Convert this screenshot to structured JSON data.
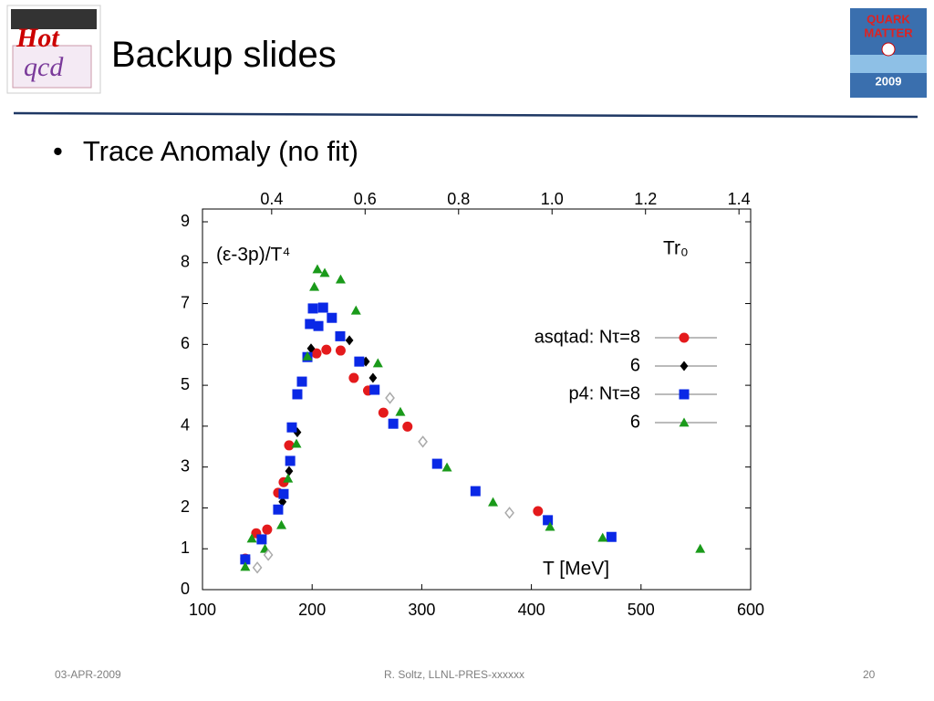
{
  "header": {
    "title": "Backup slides"
  },
  "logos": {
    "left": [
      "Hot",
      "qcd"
    ],
    "right": [
      "QUARK",
      "MATTER",
      "2009"
    ]
  },
  "bullets": [
    "Trace Anomaly (no fit)"
  ],
  "chart_data": {
    "type": "scatter",
    "annotations": [
      "(ε-3p)/T⁴",
      "Tr₀"
    ],
    "xlabel": "T [MeV]",
    "xlim": [
      100,
      600
    ],
    "xticks": [
      100,
      200,
      300,
      400,
      500,
      600
    ],
    "x2lim": [
      0.252,
      1.425
    ],
    "x2ticks": [
      {
        "value": 0.4,
        "label": "0.4"
      },
      {
        "value": 0.6,
        "label": "0.6"
      },
      {
        "value": 0.8,
        "label": "0.8"
      },
      {
        "value": 1.0,
        "label": "1.0"
      },
      {
        "value": 1.2,
        "label": "1.2"
      },
      {
        "value": 1.4,
        "label": "1.4"
      }
    ],
    "ylim": [
      0,
      9
    ],
    "yticks": [
      0,
      1,
      2,
      3,
      4,
      5,
      6,
      7,
      8,
      9
    ],
    "series": [
      {
        "name": "asqtad: Nτ=8",
        "color": "#e41a1c",
        "marker": "circle",
        "x": [
          139,
          149,
          159,
          169,
          174,
          179,
          204,
          213,
          226,
          238,
          251,
          265,
          287,
          406
        ],
        "values": [
          0.76,
          1.38,
          1.47,
          2.37,
          2.63,
          3.53,
          5.78,
          5.87,
          5.85,
          5.18,
          4.87,
          4.33,
          3.99,
          1.92
        ]
      },
      {
        "name": "6",
        "color": "#000000",
        "marker": "diamond",
        "x": [
          173,
          179,
          186.5,
          199,
          234,
          249,
          255.5
        ],
        "values": [
          2.15,
          2.9,
          3.85,
          5.9,
          6.1,
          5.58,
          5.18
        ]
      },
      {
        "name": "p4: Nτ=8",
        "color": "#0a28e6",
        "marker": "square",
        "x": [
          139,
          154,
          169,
          174,
          180,
          181.5,
          186.5,
          190.7,
          195.7,
          198,
          200.7,
          205.7,
          210,
          218,
          225.6,
          243,
          257,
          274,
          314,
          349,
          415,
          473
        ],
        "values": [
          0.74,
          1.23,
          1.96,
          2.34,
          3.15,
          3.97,
          4.78,
          5.09,
          5.69,
          6.5,
          6.88,
          6.45,
          6.9,
          6.65,
          6.2,
          5.58,
          4.89,
          4.06,
          3.08,
          2.41,
          1.7,
          1.29
        ]
      },
      {
        "name": "6",
        "color": "#1a9a1a",
        "marker": "triangle",
        "x": [
          139,
          145,
          157,
          172,
          178,
          185.7,
          195.7,
          202,
          204.8,
          211.5,
          226,
          240,
          260,
          280.5,
          323,
          365,
          417,
          465,
          554
        ],
        "values": [
          0.56,
          1.25,
          1.0,
          1.58,
          2.72,
          3.57,
          5.71,
          7.41,
          7.84,
          7.75,
          7.59,
          6.83,
          5.54,
          4.35,
          2.99,
          2.14,
          1.54,
          1.27,
          1.0
        ]
      },
      {
        "color": "#aaaaaa",
        "marker": "open-diamond",
        "x": [
          150,
          160,
          271,
          301,
          380
        ],
        "values": [
          0.54,
          0.85,
          4.69,
          3.62,
          1.88
        ]
      }
    ]
  },
  "footer": {
    "date": "03-APR-2009",
    "author": "R. Soltz,  LLNL-PRES-xxxxxx",
    "page": "20"
  }
}
